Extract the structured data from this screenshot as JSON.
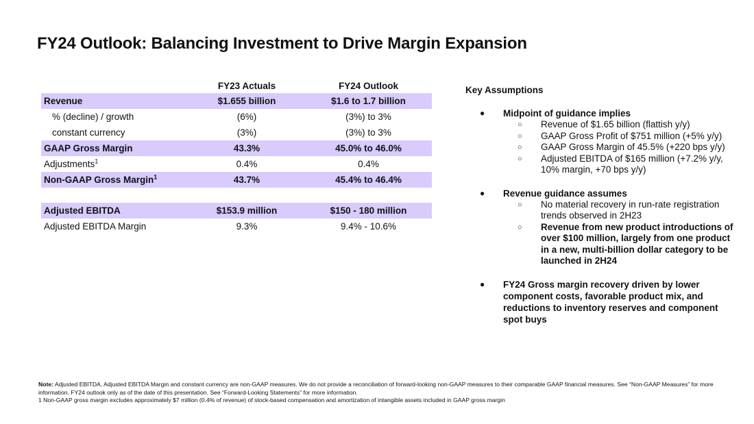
{
  "title": "FY24 Outlook: Balancing Investment to Drive Margin Expansion",
  "table": {
    "headers": [
      "",
      "FY23 Actuals",
      "FY24 Outlook"
    ],
    "rows": [
      {
        "label": "Revenue",
        "fy23": "$1.655 billion",
        "fy24": "$1.6 to 1.7 billion"
      },
      {
        "label": "% (decline) / growth",
        "fy23": "(6%)",
        "fy24": "(3%) to 3%"
      },
      {
        "label": "constant currency",
        "fy23": "(3%)",
        "fy24": "(3%) to 3%"
      },
      {
        "label": "GAAP Gross Margin",
        "fy23": "43.3%",
        "fy24": "45.0% to 46.0%"
      },
      {
        "label": "Adjustments",
        "sup": "1",
        "fy23": "0.4%",
        "fy24": "0.4%"
      },
      {
        "label": "Non-GAAP Gross Margin",
        "sup": "1",
        "fy23": "43.7%",
        "fy24": "45.4% to 46.4%"
      },
      {
        "label": "Adjusted EBITDA",
        "fy23": "$153.9 million",
        "fy24": "$150 - 180 million"
      },
      {
        "label": "Adjusted EBITDA Margin",
        "fy23": "9.3%",
        "fy24": "9.4% - 10.6%"
      }
    ]
  },
  "assumptions": {
    "title": "Key Assumptions",
    "bullet_glyph": "●",
    "sub_glyph": "○",
    "items": [
      {
        "text": "Midpoint of guidance implies",
        "subs": [
          "Revenue of $1.65 billion (flattish y/y)",
          "GAAP Gross Profit of $751 million (+5% y/y)",
          "GAAP Gross Margin of 45.5% (+220 bps y/y)",
          "Adjusted EBITDA of $165 million (+7.2% y/y, 10% margin, +70 bps y/y)"
        ]
      },
      {
        "text": "Revenue guidance assumes",
        "subs": [
          "No material recovery in run-rate registration trends observed in 2H23",
          "Revenue from new product introductions of over $100 million, largely from one product in a new, multi-billion dollar category to be launched in 2H24"
        ]
      },
      {
        "text": "FY24 Gross margin recovery driven by lower component costs, favorable product mix, and reductions to inventory reserves and component spot buys",
        "subs": []
      }
    ]
  },
  "notes": {
    "note_label": "Note:",
    "note_text": " Adjusted EBITDA, Adjusted EBITDA Margin and constant currency  are non-GAAP measures. We do not provide a reconciliation of forward-looking non-GAAP measures to their comparable GAAP financial measures. See “Non-GAAP Measures” for more information. FY24 outlook only as of the date of this presentation. See “Forward-Looking Statements” for more information.",
    "footnote": "1  Non-GAAP gross margin excludes approximately $7 million (0.4% of revenue) of stock-based compensation and amortization of intangible assets included in GAAP gross margin"
  },
  "colors": {
    "highlight": "#d9cbfb",
    "text": "#111111"
  }
}
